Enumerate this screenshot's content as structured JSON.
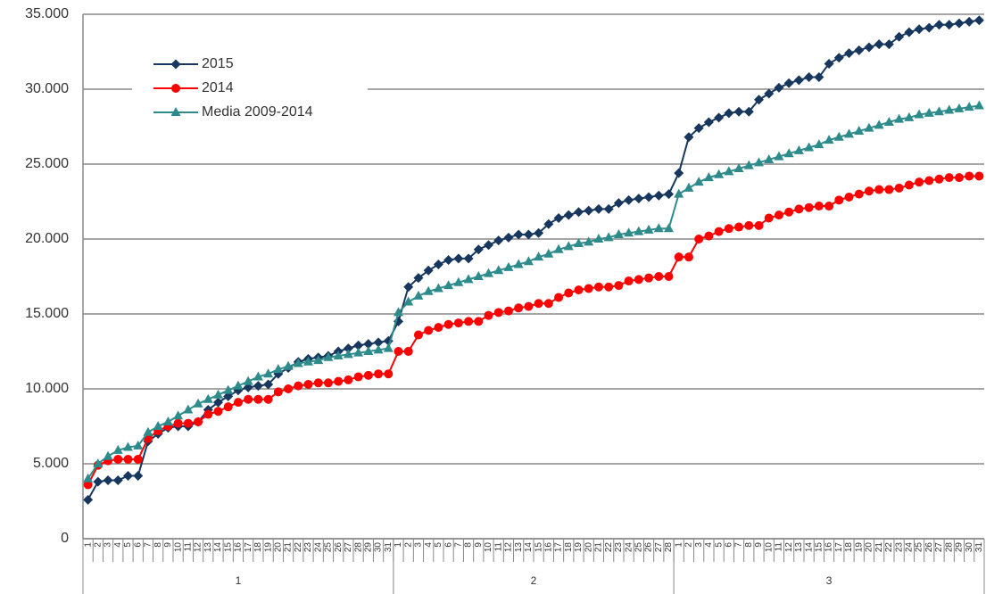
{
  "chart_data": {
    "type": "line",
    "categories": [
      "1",
      "2",
      "3",
      "4",
      "5",
      "6",
      "7",
      "8",
      "9",
      "10",
      "11",
      "12",
      "13",
      "14",
      "15",
      "16",
      "17",
      "18",
      "19",
      "20",
      "21",
      "22",
      "23",
      "24",
      "25",
      "26",
      "27",
      "28",
      "29",
      "30",
      "31",
      "1",
      "2",
      "3",
      "4",
      "5",
      "6",
      "7",
      "8",
      "9",
      "10",
      "11",
      "12",
      "13",
      "14",
      "15",
      "16",
      "17",
      "18",
      "19",
      "20",
      "21",
      "22",
      "23",
      "24",
      "25",
      "26",
      "27",
      "28",
      "1",
      "2",
      "3",
      "4",
      "5",
      "6",
      "7",
      "8",
      "9",
      "10",
      "11",
      "12",
      "13",
      "14",
      "15",
      "16",
      "17",
      "18",
      "19",
      "20",
      "21",
      "22",
      "23",
      "24",
      "25",
      "26",
      "27",
      "28",
      "29",
      "30",
      "31"
    ],
    "groups": [
      "1",
      "2",
      "3"
    ],
    "series": [
      {
        "name": "2015",
        "color": "#17375e",
        "marker": "diamond",
        "values": [
          2600,
          3800,
          3900,
          3900,
          4200,
          4200,
          6500,
          7000,
          7400,
          7500,
          7500,
          7800,
          8600,
          9100,
          9500,
          9900,
          10100,
          10200,
          10300,
          11000,
          11400,
          11800,
          12000,
          12100,
          12200,
          12500,
          12700,
          12900,
          13000,
          13100,
          13200,
          14500,
          16800,
          17400,
          17900,
          18300,
          18600,
          18700,
          18700,
          19300,
          19600,
          19900,
          20100,
          20300,
          20300,
          20400,
          21000,
          21400,
          21600,
          21800,
          21900,
          22000,
          22000,
          22400,
          22600,
          22700,
          22800,
          22900,
          23000,
          24400,
          26800,
          27400,
          27800,
          28100,
          28400,
          28500,
          28500,
          29300,
          29700,
          30100,
          30400,
          30600,
          30800,
          30800,
          31700,
          32100,
          32400,
          32600,
          32800,
          33000,
          33000,
          33500,
          33800,
          34000,
          34100,
          34300,
          34300,
          34400,
          34500,
          34600
        ]
      },
      {
        "name": "2014",
        "color": "#ff0000",
        "marker": "circle",
        "values": [
          3600,
          4900,
          5200,
          5300,
          5300,
          5300,
          6700,
          7200,
          7500,
          7700,
          7700,
          7800,
          8300,
          8500,
          8800,
          9100,
          9300,
          9300,
          9300,
          9800,
          10000,
          10200,
          10300,
          10400,
          10400,
          10500,
          10600,
          10800,
          10900,
          11000,
          11000,
          12500,
          12500,
          13600,
          13900,
          14100,
          14300,
          14400,
          14500,
          14500,
          14900,
          15100,
          15200,
          15400,
          15500,
          15700,
          15700,
          16100,
          16400,
          16600,
          16700,
          16800,
          16800,
          16900,
          17200,
          17300,
          17400,
          17500,
          17500,
          18800,
          18800,
          20000,
          20200,
          20500,
          20700,
          20800,
          20900,
          20900,
          21400,
          21600,
          21800,
          22000,
          22100,
          22200,
          22200,
          22600,
          22800,
          23000,
          23200,
          23300,
          23300,
          23400,
          23600,
          23800,
          23900,
          24000,
          24100,
          24100,
          24200,
          24200
        ]
      },
      {
        "name": "Media 2009-2014",
        "color": "#2e8b8b",
        "marker": "triangle",
        "values": [
          4000,
          5000,
          5500,
          5900,
          6100,
          6200,
          7100,
          7500,
          7800,
          8200,
          8600,
          9000,
          9300,
          9600,
          9900,
          10200,
          10500,
          10800,
          11000,
          11300,
          11500,
          11700,
          11800,
          11900,
          12100,
          12200,
          12300,
          12400,
          12500,
          12600,
          12700,
          15100,
          15800,
          16200,
          16500,
          16700,
          16900,
          17100,
          17300,
          17500,
          17700,
          17900,
          18100,
          18300,
          18500,
          18800,
          19000,
          19300,
          19500,
          19700,
          19800,
          20000,
          20100,
          20300,
          20400,
          20500,
          20600,
          20700,
          20700,
          23000,
          23400,
          23800,
          24100,
          24300,
          24500,
          24700,
          24900,
          25100,
          25300,
          25500,
          25700,
          25900,
          26100,
          26300,
          26600,
          26800,
          27000,
          27200,
          27400,
          27600,
          27800,
          28000,
          28100,
          28300,
          28400,
          28500,
          28600,
          28700,
          28800,
          28900
        ]
      }
    ],
    "ylim": [
      0,
      35000
    ],
    "yticks": [
      0,
      {
        "value": 5000,
        "label": "5.000"
      },
      {
        "value": 10000,
        "label": "10.000"
      },
      {
        "value": 15000,
        "label": "15.000"
      },
      {
        "value": 20000,
        "label": "20.000"
      },
      {
        "value": 25000,
        "label": "25.000"
      },
      {
        "value": 30000,
        "label": "30.000"
      },
      {
        "value": 35000,
        "label": "35.000"
      }
    ],
    "grid": true,
    "legend": "top-left"
  }
}
